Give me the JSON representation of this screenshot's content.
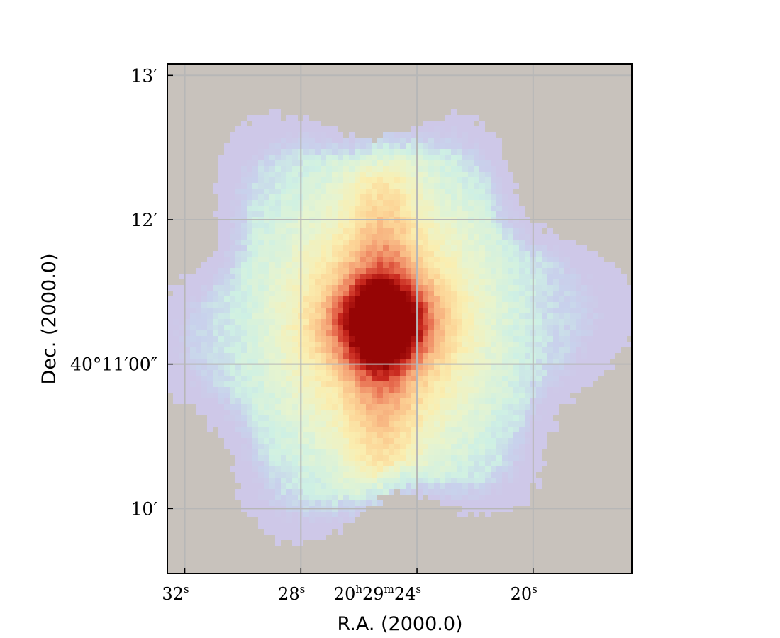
{
  "chart_data": {
    "type": "heatmap",
    "title": "",
    "xlabel": "R.A. (2000.0)",
    "ylabel": "Dec. (2000.0)",
    "x_ticks": [
      {
        "value_sec": 32,
        "label": "32",
        "sup": "s",
        "prefix": ""
      },
      {
        "value_sec": 28,
        "label": "28",
        "sup": "s",
        "prefix": ""
      },
      {
        "value_sec": 24,
        "label": "24",
        "sup": "s",
        "prefix": "20h29m"
      },
      {
        "value_sec": 20,
        "label": "20",
        "sup": "s",
        "prefix": ""
      }
    ],
    "y_ticks": [
      {
        "value_arcmin": 13,
        "label": "13′"
      },
      {
        "value_arcmin": 12,
        "label": "12′"
      },
      {
        "value_arcmin": 11,
        "label": "40°11′00″"
      },
      {
        "value_arcmin": 10,
        "label": "10′"
      }
    ],
    "xlim_sec": [
      32.6,
      16.6
    ],
    "ylim_arcmin": [
      9.55,
      13.08
    ],
    "grid": true,
    "peak": {
      "ra_sec": 25.2,
      "dec_arcmin": 11.28
    },
    "colormap": "pastel blue-cyan-yellow-orange-red",
    "background_color": "#c8c2bc"
  }
}
